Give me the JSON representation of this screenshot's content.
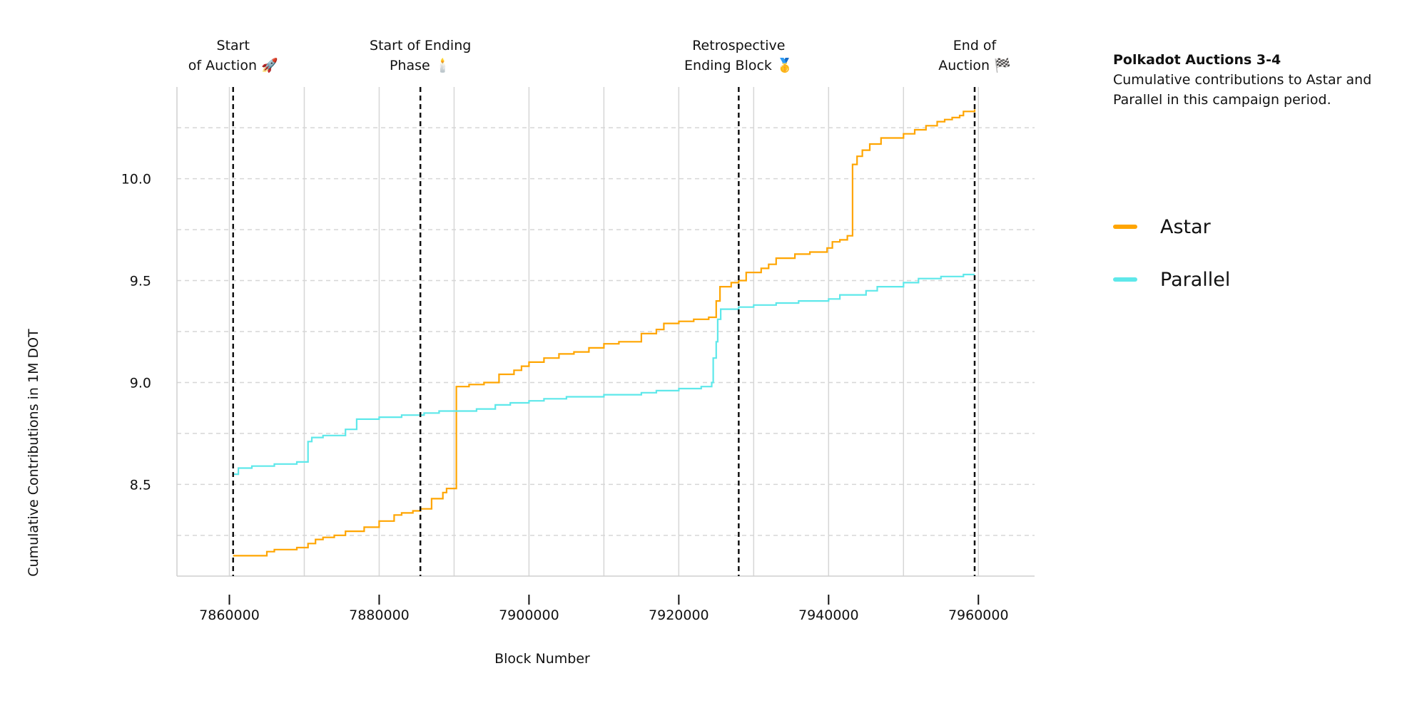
{
  "sidebar": {
    "title": "Polkadot Auctions 3-4",
    "subtitle": "Cumulative contributions to Astar and Parallel in this campaign period."
  },
  "chart_data": {
    "type": "line",
    "xlabel": "Block Number",
    "ylabel": "Cumulative Contributions in 1M DOT",
    "xlim": [
      7853000,
      7967500
    ],
    "ylim": [
      8.05,
      10.45
    ],
    "x_ticks": [
      7860000,
      7880000,
      7900000,
      7920000,
      7940000,
      7960000
    ],
    "y_ticks": [
      8.5,
      9.0,
      9.5,
      10.0
    ],
    "y_ticks_labels": [
      "8.5",
      "9.0",
      "9.5",
      "10.0"
    ],
    "y_minor_grid": [
      8.25,
      8.75,
      9.25,
      9.75,
      10.25
    ],
    "x_minor_grid": [
      7870000,
      7890000,
      7910000,
      7930000,
      7950000
    ],
    "grid": true,
    "legend_position": "right",
    "markers": [
      {
        "x": 7860500,
        "label_lines": [
          "Start",
          "of Auction 🚀"
        ]
      },
      {
        "x": 7885500,
        "label_lines": [
          "Start of Ending",
          "Phase 🕯️"
        ]
      },
      {
        "x": 7928000,
        "label_lines": [
          "Retrospective",
          "Ending Block 🥇"
        ]
      },
      {
        "x": 7959500,
        "label_lines": [
          "End of",
          "Auction 🏁"
        ]
      }
    ],
    "series": [
      {
        "name": "Astar",
        "color": "#FFA500",
        "points": [
          [
            7860500,
            8.15
          ],
          [
            7865000,
            8.17
          ],
          [
            7866000,
            8.18
          ],
          [
            7869000,
            8.19
          ],
          [
            7870500,
            8.21
          ],
          [
            7871500,
            8.23
          ],
          [
            7872500,
            8.24
          ],
          [
            7874000,
            8.25
          ],
          [
            7875500,
            8.27
          ],
          [
            7878000,
            8.29
          ],
          [
            7880000,
            8.32
          ],
          [
            7882000,
            8.35
          ],
          [
            7883000,
            8.36
          ],
          [
            7884500,
            8.37
          ],
          [
            7885500,
            8.38
          ],
          [
            7887000,
            8.43
          ],
          [
            7888500,
            8.46
          ],
          [
            7889000,
            8.48
          ],
          [
            7890300,
            8.98
          ],
          [
            7892000,
            8.99
          ],
          [
            7894000,
            9.0
          ],
          [
            7896000,
            9.04
          ],
          [
            7898000,
            9.06
          ],
          [
            7899000,
            9.08
          ],
          [
            7900000,
            9.1
          ],
          [
            7902000,
            9.12
          ],
          [
            7904000,
            9.14
          ],
          [
            7906000,
            9.15
          ],
          [
            7908000,
            9.17
          ],
          [
            7910000,
            9.19
          ],
          [
            7912000,
            9.2
          ],
          [
            7915000,
            9.24
          ],
          [
            7917000,
            9.26
          ],
          [
            7918000,
            9.29
          ],
          [
            7920000,
            9.3
          ],
          [
            7922000,
            9.31
          ],
          [
            7924000,
            9.32
          ],
          [
            7925000,
            9.4
          ],
          [
            7925500,
            9.47
          ],
          [
            7927000,
            9.49
          ],
          [
            7928000,
            9.5
          ],
          [
            7929000,
            9.54
          ],
          [
            7931000,
            9.56
          ],
          [
            7932000,
            9.58
          ],
          [
            7933000,
            9.61
          ],
          [
            7935500,
            9.63
          ],
          [
            7937500,
            9.64
          ],
          [
            7939800,
            9.66
          ],
          [
            7940500,
            9.69
          ],
          [
            7941500,
            9.7
          ],
          [
            7942500,
            9.72
          ],
          [
            7943200,
            10.07
          ],
          [
            7943800,
            10.11
          ],
          [
            7944500,
            10.14
          ],
          [
            7945500,
            10.17
          ],
          [
            7947000,
            10.2
          ],
          [
            7950000,
            10.22
          ],
          [
            7951500,
            10.24
          ],
          [
            7953000,
            10.26
          ],
          [
            7954500,
            10.28
          ],
          [
            7955500,
            10.29
          ],
          [
            7956500,
            10.3
          ],
          [
            7957500,
            10.31
          ],
          [
            7958000,
            10.33
          ],
          [
            7959500,
            10.34
          ]
        ]
      },
      {
        "name": "Parallel",
        "color": "#5EE8EA",
        "points": [
          [
            7860500,
            8.55
          ],
          [
            7861200,
            8.58
          ],
          [
            7863000,
            8.59
          ],
          [
            7866000,
            8.6
          ],
          [
            7869000,
            8.61
          ],
          [
            7870500,
            8.71
          ],
          [
            7871000,
            8.73
          ],
          [
            7872500,
            8.74
          ],
          [
            7875500,
            8.77
          ],
          [
            7877000,
            8.82
          ],
          [
            7880000,
            8.83
          ],
          [
            7883000,
            8.84
          ],
          [
            7886000,
            8.85
          ],
          [
            7888000,
            8.86
          ],
          [
            7891000,
            8.86
          ],
          [
            7893000,
            8.87
          ],
          [
            7895500,
            8.89
          ],
          [
            7897500,
            8.9
          ],
          [
            7900000,
            8.91
          ],
          [
            7902000,
            8.92
          ],
          [
            7905000,
            8.93
          ],
          [
            7910000,
            8.94
          ],
          [
            7915000,
            8.95
          ],
          [
            7917000,
            8.96
          ],
          [
            7920000,
            8.97
          ],
          [
            7923000,
            8.98
          ],
          [
            7924400,
            9.0
          ],
          [
            7924600,
            9.12
          ],
          [
            7925000,
            9.2
          ],
          [
            7925200,
            9.31
          ],
          [
            7925600,
            9.36
          ],
          [
            7928000,
            9.37
          ],
          [
            7930000,
            9.38
          ],
          [
            7933000,
            9.39
          ],
          [
            7936000,
            9.4
          ],
          [
            7940000,
            9.41
          ],
          [
            7941500,
            9.43
          ],
          [
            7945000,
            9.45
          ],
          [
            7946500,
            9.47
          ],
          [
            7950000,
            9.49
          ],
          [
            7952000,
            9.51
          ],
          [
            7955000,
            9.52
          ],
          [
            7958000,
            9.53
          ],
          [
            7959500,
            9.53
          ]
        ]
      }
    ]
  }
}
